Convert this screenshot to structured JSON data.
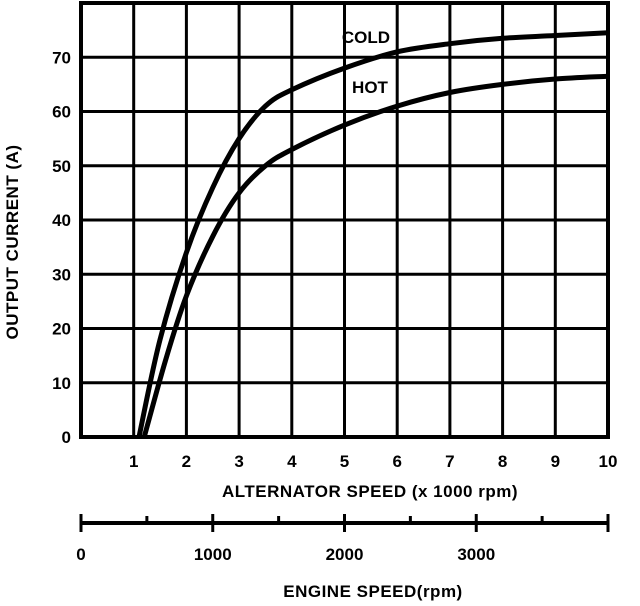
{
  "chart_data": {
    "type": "line",
    "xlabel": "ALTERNATOR SPEED  (x 1000 rpm)",
    "ylabel": "OUTPUT CURRENT (A)",
    "xlim": [
      0,
      10
    ],
    "ylim": [
      0,
      80
    ],
    "x_ticks": [
      "1",
      "2",
      "3",
      "4",
      "5",
      "6",
      "7",
      "8",
      "9",
      "10"
    ],
    "y_ticks": [
      "0",
      "10",
      "20",
      "30",
      "40",
      "50",
      "60",
      "70"
    ],
    "grid": true,
    "series": [
      {
        "name": "COLD",
        "x": [
          1.1,
          1.5,
          2.0,
          2.5,
          3.0,
          3.5,
          4.0,
          5.0,
          6.0,
          7.0,
          8.0,
          9.0,
          10.0
        ],
        "y": [
          0,
          18,
          34,
          46,
          55,
          61,
          64,
          68,
          71,
          72.5,
          73.5,
          74,
          74.5
        ]
      },
      {
        "name": "HOT",
        "x": [
          1.2,
          1.6,
          2.0,
          2.5,
          3.0,
          3.5,
          4.0,
          5.0,
          6.0,
          7.0,
          8.0,
          9.0,
          10.0
        ],
        "y": [
          0,
          14,
          26,
          37,
          45,
          50,
          53,
          57.5,
          61,
          63.5,
          65,
          66,
          66.5
        ]
      }
    ],
    "secondary_axis": {
      "label": "ENGINE SPEED(rpm)",
      "ticks": [
        "0",
        "1000",
        "2000",
        "3000"
      ],
      "tick_values": [
        0,
        1000,
        2000,
        3000
      ],
      "range_rpm": [
        0,
        4000
      ]
    }
  }
}
